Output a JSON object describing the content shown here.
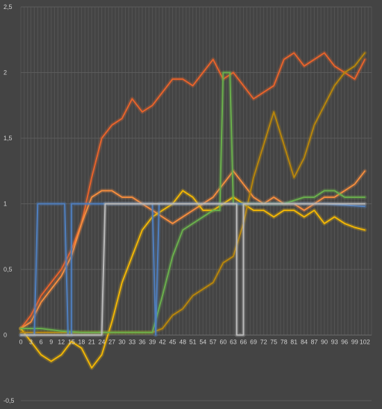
{
  "chart_data": {
    "type": "line",
    "title": "",
    "xlabel": "",
    "ylabel": "",
    "ylim": [
      -0.5,
      2.5
    ],
    "xlim": [
      0,
      104
    ],
    "y_ticks": [
      {
        "value": 2.5,
        "label": "2,5"
      },
      {
        "value": 2,
        "label": "2"
      },
      {
        "value": 1.5,
        "label": "1,5"
      },
      {
        "value": 1,
        "label": "1"
      },
      {
        "value": 0.5,
        "label": "0,5"
      },
      {
        "value": 0,
        "label": "0"
      },
      {
        "value": -0.5,
        "label": "-0,5"
      }
    ],
    "x_tick_labels": [
      "0",
      "3",
      "6",
      "9",
      "12",
      "15",
      "18",
      "21",
      "24",
      "27",
      "30",
      "33",
      "36",
      "39",
      "42",
      "45",
      "48",
      "51",
      "54",
      "57",
      "60",
      "63",
      "66",
      "69",
      "72",
      "75",
      "78",
      "81",
      "84",
      "87",
      "90",
      "93",
      "96",
      "99",
      "102"
    ],
    "grid": {
      "horizontal": true,
      "vertical_minor": true
    },
    "legend": "none",
    "series": [
      {
        "color": "#e8632b",
        "points": [
          [
            0,
            0.05
          ],
          [
            3,
            0.15
          ],
          [
            6,
            0.3
          ],
          [
            9,
            0.4
          ],
          [
            12,
            0.5
          ],
          [
            15,
            0.65
          ],
          [
            18,
            0.85
          ],
          [
            21,
            1.2
          ],
          [
            24,
            1.5
          ],
          [
            27,
            1.6
          ],
          [
            30,
            1.65
          ],
          [
            33,
            1.8
          ],
          [
            36,
            1.7
          ],
          [
            39,
            1.75
          ],
          [
            42,
            1.85
          ],
          [
            45,
            1.95
          ],
          [
            48,
            1.95
          ],
          [
            51,
            1.9
          ],
          [
            54,
            2.0
          ],
          [
            57,
            2.1
          ],
          [
            60,
            1.95
          ],
          [
            63,
            2.0
          ],
          [
            66,
            1.9
          ],
          [
            69,
            1.8
          ],
          [
            72,
            1.85
          ],
          [
            75,
            1.9
          ],
          [
            78,
            2.1
          ],
          [
            81,
            2.15
          ],
          [
            84,
            2.05
          ],
          [
            87,
            2.1
          ],
          [
            90,
            2.15
          ],
          [
            93,
            2.05
          ],
          [
            96,
            2.0
          ],
          [
            99,
            1.95
          ],
          [
            102,
            2.1
          ]
        ]
      },
      {
        "color": "#f58d3e",
        "points": [
          [
            0,
            0.05
          ],
          [
            3,
            0.1
          ],
          [
            6,
            0.25
          ],
          [
            9,
            0.35
          ],
          [
            12,
            0.45
          ],
          [
            15,
            0.6
          ],
          [
            18,
            0.85
          ],
          [
            21,
            1.05
          ],
          [
            24,
            1.1
          ],
          [
            27,
            1.1
          ],
          [
            30,
            1.05
          ],
          [
            33,
            1.05
          ],
          [
            36,
            1.0
          ],
          [
            39,
            0.95
          ],
          [
            42,
            0.9
          ],
          [
            45,
            0.85
          ],
          [
            48,
            0.9
          ],
          [
            51,
            0.95
          ],
          [
            54,
            1.0
          ],
          [
            57,
            1.05
          ],
          [
            60,
            1.15
          ],
          [
            63,
            1.25
          ],
          [
            66,
            1.15
          ],
          [
            69,
            1.05
          ],
          [
            72,
            1.0
          ],
          [
            75,
            1.05
          ],
          [
            78,
            1.0
          ],
          [
            81,
            1.0
          ],
          [
            84,
            0.95
          ],
          [
            87,
            1.0
          ],
          [
            90,
            1.05
          ],
          [
            93,
            1.05
          ],
          [
            96,
            1.1
          ],
          [
            99,
            1.15
          ],
          [
            102,
            1.25
          ]
        ]
      },
      {
        "color": "#f2b705",
        "points": [
          [
            0,
            0.05
          ],
          [
            3,
            -0.05
          ],
          [
            6,
            -0.15
          ],
          [
            9,
            -0.2
          ],
          [
            12,
            -0.15
          ],
          [
            15,
            -0.05
          ],
          [
            18,
            -0.1
          ],
          [
            21,
            -0.25
          ],
          [
            24,
            -0.15
          ],
          [
            27,
            0.1
          ],
          [
            30,
            0.4
          ],
          [
            33,
            0.6
          ],
          [
            36,
            0.8
          ],
          [
            39,
            0.9
          ],
          [
            42,
            0.95
          ],
          [
            45,
            1.0
          ],
          [
            48,
            1.1
          ],
          [
            51,
            1.05
          ],
          [
            54,
            0.95
          ],
          [
            57,
            0.95
          ],
          [
            60,
            1.0
          ],
          [
            63,
            1.05
          ],
          [
            66,
            1.0
          ],
          [
            69,
            0.95
          ],
          [
            72,
            0.95
          ],
          [
            75,
            0.9
          ],
          [
            78,
            0.95
          ],
          [
            81,
            0.95
          ],
          [
            84,
            0.9
          ],
          [
            87,
            0.95
          ],
          [
            90,
            0.85
          ],
          [
            93,
            0.9
          ],
          [
            96,
            0.85
          ],
          [
            99,
            0.82
          ],
          [
            102,
            0.8
          ]
        ]
      },
      {
        "color": "#b8860b",
        "points": [
          [
            0,
            0.02
          ],
          [
            15,
            0.02
          ],
          [
            30,
            0.02
          ],
          [
            39,
            0.02
          ],
          [
            42,
            0.05
          ],
          [
            45,
            0.15
          ],
          [
            48,
            0.2
          ],
          [
            51,
            0.3
          ],
          [
            54,
            0.35
          ],
          [
            57,
            0.4
          ],
          [
            60,
            0.55
          ],
          [
            63,
            0.6
          ],
          [
            66,
            0.85
          ],
          [
            69,
            1.2
          ],
          [
            72,
            1.45
          ],
          [
            75,
            1.7
          ],
          [
            78,
            1.45
          ],
          [
            81,
            1.2
          ],
          [
            84,
            1.35
          ],
          [
            87,
            1.6
          ],
          [
            90,
            1.75
          ],
          [
            93,
            1.9
          ],
          [
            96,
            2.0
          ],
          [
            99,
            2.05
          ],
          [
            102,
            2.15
          ]
        ]
      },
      {
        "color": "#6ab04c",
        "points": [
          [
            0,
            0.05
          ],
          [
            6,
            0.05
          ],
          [
            12,
            0.03
          ],
          [
            18,
            0.02
          ],
          [
            24,
            0.02
          ],
          [
            30,
            0.02
          ],
          [
            36,
            0.02
          ],
          [
            39,
            0.02
          ],
          [
            42,
            0.3
          ],
          [
            45,
            0.6
          ],
          [
            48,
            0.8
          ],
          [
            51,
            0.85
          ],
          [
            54,
            0.9
          ],
          [
            57,
            0.95
          ],
          [
            59,
            0.95
          ],
          [
            60,
            2.0
          ],
          [
            62,
            2.0
          ],
          [
            63,
            1.0
          ],
          [
            66,
            1.0
          ],
          [
            69,
            1.0
          ],
          [
            72,
            1.0
          ],
          [
            78,
            1.0
          ],
          [
            84,
            1.05
          ],
          [
            87,
            1.05
          ],
          [
            90,
            1.1
          ],
          [
            93,
            1.1
          ],
          [
            96,
            1.05
          ],
          [
            99,
            1.05
          ],
          [
            102,
            1.05
          ]
        ]
      },
      {
        "color": "#4f7fbf",
        "points": [
          [
            0,
            0.0
          ],
          [
            4,
            0.0
          ],
          [
            5,
            1.0
          ],
          [
            10,
            1.0
          ],
          [
            13,
            1.0
          ],
          [
            14,
            0.0
          ],
          [
            15,
            0.0
          ],
          [
            15,
            1.0
          ],
          [
            39,
            1.0
          ],
          [
            40,
            0.0
          ],
          [
            41,
            1.0
          ],
          [
            60,
            1.0
          ],
          [
            63,
            1.0
          ],
          [
            75,
            1.0
          ],
          [
            90,
            1.0
          ],
          [
            102,
            0.98
          ]
        ]
      },
      {
        "color": "#bcbcbc",
        "points": [
          [
            0,
            0.0
          ],
          [
            24,
            0.0
          ],
          [
            25,
            1.0
          ],
          [
            38,
            1.0
          ],
          [
            39,
            1.0
          ],
          [
            60,
            1.0
          ],
          [
            64,
            1.0
          ],
          [
            64,
            0.0
          ],
          [
            66,
            0.0
          ],
          [
            66,
            1.0
          ],
          [
            102,
            1.0
          ]
        ]
      }
    ]
  }
}
